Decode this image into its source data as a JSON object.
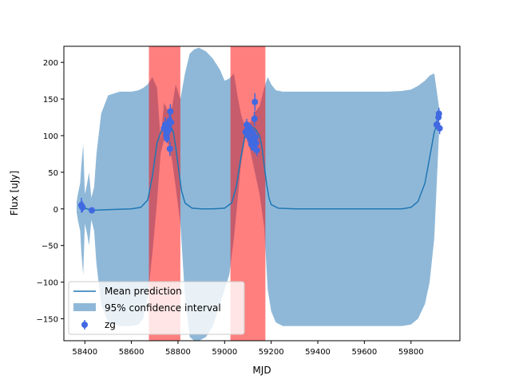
{
  "chart_data": {
    "type": "line",
    "title": "",
    "xlabel": "MJD",
    "ylabel": "Flux [uJy]",
    "xlim": [
      58310,
      60010
    ],
    "ylim": [
      -180,
      222
    ],
    "xticks": [
      58400,
      58600,
      58800,
      59000,
      59200,
      59400,
      59600,
      59800
    ],
    "yticks": [
      -150,
      -100,
      -50,
      0,
      50,
      100,
      150,
      200
    ],
    "grid": false,
    "legend": {
      "placement": "lower-left",
      "entries": [
        "Mean prediction",
        "95% confidence interval",
        "zg"
      ]
    },
    "colors": {
      "mean_line": "#1f77b4",
      "confidence_band": "#8fb8d8",
      "data_points": "#4169e1",
      "shaded_region": "#ff0000"
    },
    "shaded_regions": [
      {
        "x_start": 58675,
        "x_end": 58810
      },
      {
        "x_start": 59025,
        "x_end": 59175
      }
    ],
    "series": [
      {
        "name": "Mean prediction",
        "kind": "line",
        "x": [
          58380,
          58400,
          58430,
          58500,
          58600,
          58640,
          58670,
          58690,
          58710,
          58730,
          58750,
          58770,
          58780,
          58790,
          58800,
          58815,
          58830,
          58860,
          58900,
          58950,
          59000,
          59030,
          59050,
          59070,
          59090,
          59110,
          59130,
          59150,
          59160,
          59170,
          59180,
          59190,
          59200,
          59230,
          59300,
          59400,
          59500,
          59600,
          59700,
          59760,
          59800,
          59830,
          59860,
          59880,
          59900,
          59920
        ],
        "y": [
          3,
          1,
          -2,
          -1,
          0,
          2,
          12,
          45,
          90,
          108,
          112,
          112,
          105,
          85,
          60,
          25,
          8,
          1,
          0,
          0,
          1,
          8,
          30,
          70,
          105,
          112,
          110,
          100,
          85,
          60,
          35,
          15,
          6,
          1,
          0,
          0,
          0,
          0,
          0,
          0,
          2,
          10,
          35,
          70,
          105,
          122
        ]
      },
      {
        "name": "95% confidence interval",
        "kind": "band",
        "x": [
          58365,
          58370,
          58380,
          58385,
          58393,
          58400,
          58410,
          58418,
          58428,
          58440,
          58450,
          58470,
          58500,
          58550,
          58600,
          58630,
          58650,
          58670,
          58690,
          58710,
          58725,
          58740,
          58760,
          58775,
          58790,
          58810,
          58830,
          58850,
          58870,
          58890,
          58920,
          58950,
          58980,
          59000,
          59020,
          59040,
          59055,
          59070,
          59090,
          59110,
          59130,
          59150,
          59170,
          59185,
          59200,
          59220,
          59250,
          59300,
          59400,
          59500,
          59600,
          59700,
          59760,
          59800,
          59830,
          59860,
          59880,
          59900,
          59920
        ],
        "upper": [
          10,
          20,
          35,
          60,
          88,
          20,
          35,
          50,
          15,
          30,
          75,
          130,
          155,
          160,
          160,
          162,
          165,
          170,
          180,
          165,
          95,
          145,
          132,
          140,
          170,
          150,
          185,
          212,
          218,
          220,
          215,
          205,
          190,
          175,
          178,
          185,
          155,
          130,
          108,
          118,
          132,
          140,
          165,
          180,
          170,
          162,
          160,
          160,
          160,
          160,
          160,
          160,
          161,
          163,
          168,
          175,
          182,
          185,
          140
        ],
        "lower": [
          -5,
          -15,
          -30,
          -60,
          -90,
          -20,
          -35,
          -50,
          -15,
          -30,
          -75,
          -130,
          -155,
          -160,
          -160,
          -158,
          -150,
          -120,
          -60,
          10,
          75,
          95,
          88,
          65,
          30,
          -20,
          -120,
          -175,
          -180,
          -180,
          -175,
          -160,
          -130,
          -110,
          -90,
          -40,
          10,
          60,
          100,
          80,
          50,
          20,
          -25,
          -110,
          -140,
          -155,
          -160,
          -160,
          -160,
          -160,
          -160,
          -160,
          -160,
          -158,
          -150,
          -130,
          -100,
          -40,
          100
        ]
      },
      {
        "name": "zg",
        "kind": "scatter",
        "points": [
          {
            "x": 58385,
            "y": 5,
            "err": 10
          },
          {
            "x": 58388,
            "y": 3,
            "err": 8
          },
          {
            "x": 58390,
            "y": 2,
            "err": 6
          },
          {
            "x": 58430,
            "y": -2,
            "err": 4
          },
          {
            "x": 58740,
            "y": 110,
            "err": 8
          },
          {
            "x": 58745,
            "y": 115,
            "err": 10
          },
          {
            "x": 58750,
            "y": 100,
            "err": 8
          },
          {
            "x": 58752,
            "y": 96,
            "err": 6
          },
          {
            "x": 58755,
            "y": 105,
            "err": 6
          },
          {
            "x": 58758,
            "y": 112,
            "err": 6
          },
          {
            "x": 58760,
            "y": 108,
            "err": 8
          },
          {
            "x": 58763,
            "y": 120,
            "err": 10
          },
          {
            "x": 58765,
            "y": 82,
            "err": 10
          },
          {
            "x": 58767,
            "y": 133,
            "err": 10
          },
          {
            "x": 58770,
            "y": 118,
            "err": 8
          },
          {
            "x": 59090,
            "y": 105,
            "err": 8
          },
          {
            "x": 59095,
            "y": 115,
            "err": 8
          },
          {
            "x": 59098,
            "y": 108,
            "err": 6
          },
          {
            "x": 59100,
            "y": 100,
            "err": 8
          },
          {
            "x": 59105,
            "y": 112,
            "err": 6
          },
          {
            "x": 59110,
            "y": 95,
            "err": 10
          },
          {
            "x": 59115,
            "y": 88,
            "err": 8
          },
          {
            "x": 59118,
            "y": 105,
            "err": 6
          },
          {
            "x": 59120,
            "y": 92,
            "err": 8
          },
          {
            "x": 59125,
            "y": 84,
            "err": 6
          },
          {
            "x": 59128,
            "y": 123,
            "err": 10
          },
          {
            "x": 59130,
            "y": 146,
            "err": 12
          },
          {
            "x": 59133,
            "y": 98,
            "err": 8
          },
          {
            "x": 59135,
            "y": 90,
            "err": 6
          },
          {
            "x": 59138,
            "y": 80,
            "err": 8
          },
          {
            "x": 59910,
            "y": 115,
            "err": 6
          },
          {
            "x": 59918,
            "y": 125,
            "err": 10
          },
          {
            "x": 59920,
            "y": 130,
            "err": 8
          },
          {
            "x": 59923,
            "y": 110,
            "err": 8
          }
        ]
      }
    ]
  }
}
